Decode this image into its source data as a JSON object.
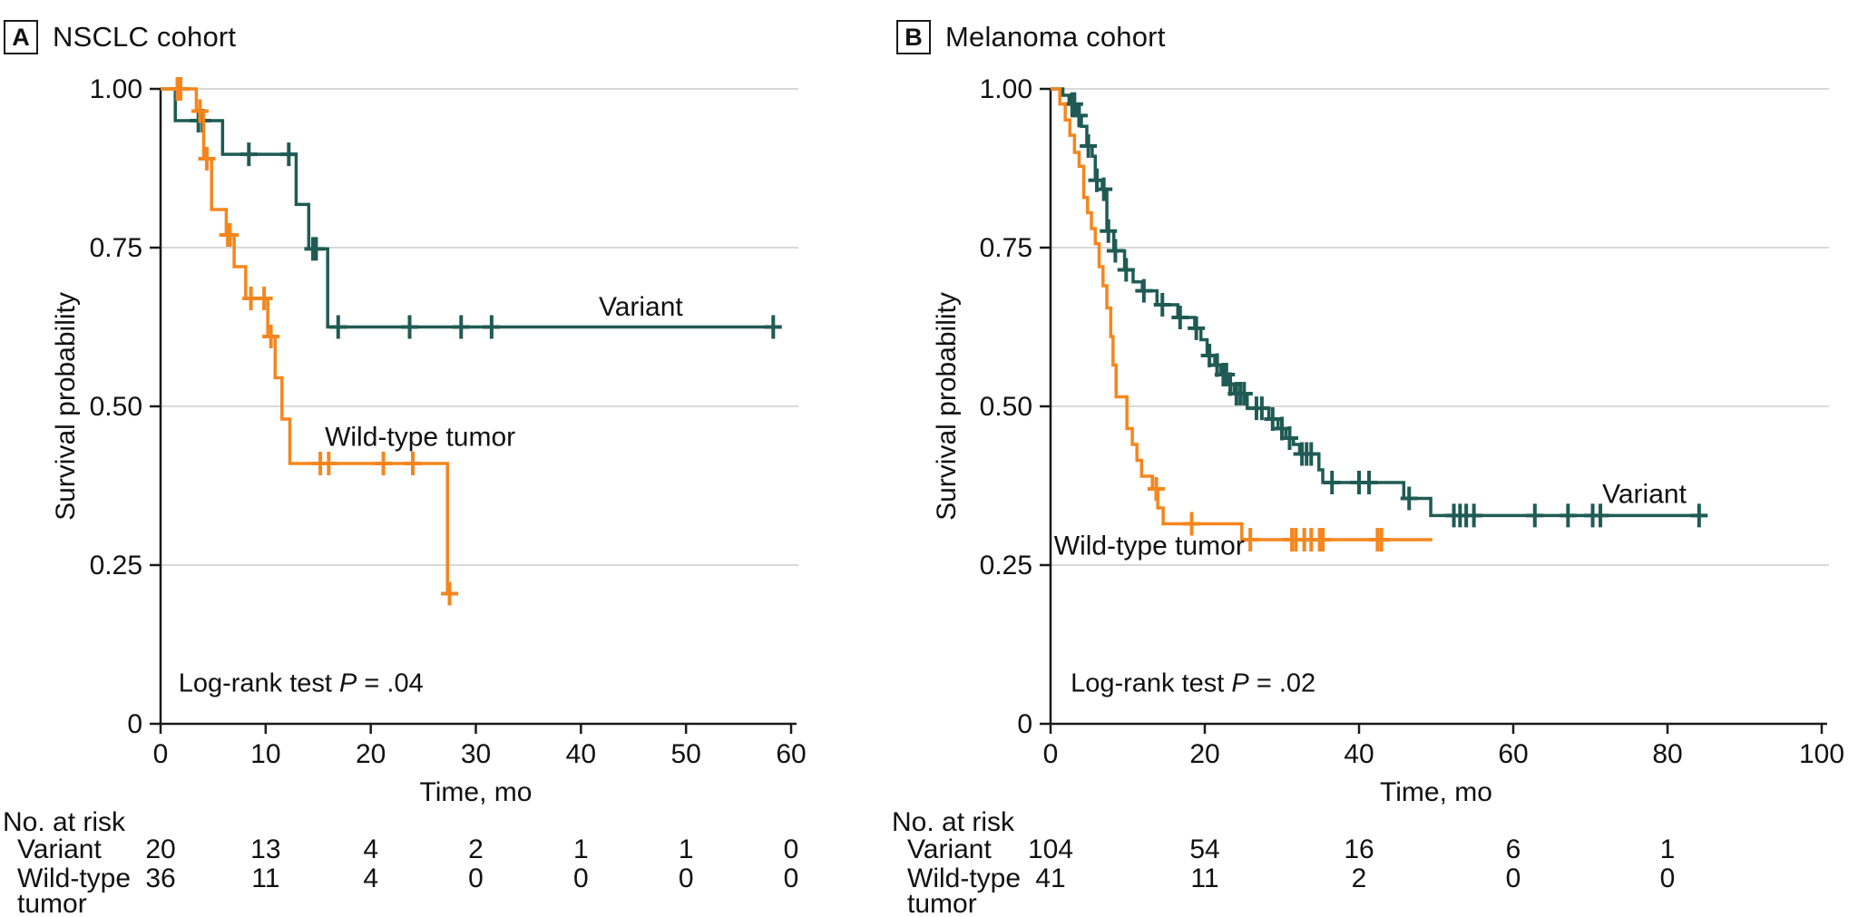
{
  "figure": {
    "kind": "kaplan-meier-survival-figure",
    "colors": {
      "variant": "#1F5B54",
      "wild_type": "#F5861D",
      "grid": "#D9D9D9",
      "axis": "#1A1A1A",
      "text": "#111111"
    }
  },
  "chart_data": [
    {
      "panel": "A",
      "title": "NSCLC cohort",
      "type": "line",
      "subtype": "kaplan-meier-step",
      "xlabel": "Time, mo",
      "ylabel": "Survival probability",
      "xlim": [
        0,
        60
      ],
      "ylim": [
        0,
        1
      ],
      "grid": true,
      "xticks": [
        0,
        10,
        20,
        30,
        40,
        50,
        60
      ],
      "yticks": [
        {
          "v": 1.0,
          "label": "1.00"
        },
        {
          "v": 0.75,
          "label": "0.75"
        },
        {
          "v": 0.5,
          "label": "0.50"
        },
        {
          "v": 0.25,
          "label": "0.25"
        },
        {
          "v": 0,
          "label": "0"
        }
      ],
      "annotation": {
        "prefix": "Log-rank test ",
        "italic": "P",
        "suffix": " = .04",
        "x": 1.7,
        "y": 0.065
      },
      "series": [
        {
          "name": "Variant",
          "color_key": "variant",
          "label": {
            "text": "Variant",
            "x": 45.7,
            "y": 0.657
          },
          "steps": [
            [
              0,
              1
            ],
            [
              1.4,
              0.95
            ],
            [
              5.9,
              0.897
            ],
            [
              12.9,
              0.818
            ],
            [
              14.1,
              0.748
            ],
            [
              15.9,
              0.625
            ]
          ],
          "end_x": 59.0,
          "censors": [
            [
              3.6,
              0.95
            ],
            [
              4.0,
              0.95
            ],
            [
              8.4,
              0.897
            ],
            [
              12.2,
              0.897
            ],
            [
              14.5,
              0.748
            ],
            [
              14.8,
              0.748
            ],
            [
              16.9,
              0.625
            ],
            [
              23.7,
              0.625
            ],
            [
              28.6,
              0.625
            ],
            [
              31.5,
              0.625
            ],
            [
              58.3,
              0.625
            ]
          ]
        },
        {
          "name": "Wild-type tumor",
          "color_key": "wild_type",
          "label": {
            "text": "Wild-type tumor",
            "x": 24.7,
            "y": 0.452
          },
          "steps": [
            [
              0,
              1
            ],
            [
              3.4,
              0.965
            ],
            [
              4.1,
              0.89
            ],
            [
              4.85,
              0.81
            ],
            [
              6.25,
              0.77
            ],
            [
              7.0,
              0.72
            ],
            [
              8.1,
              0.67
            ],
            [
              10.2,
              0.61
            ],
            [
              10.9,
              0.545
            ],
            [
              11.55,
              0.48
            ],
            [
              12.3,
              0.41
            ],
            [
              27.3,
              0.205
            ]
          ],
          "end_x": 27.8,
          "censors": [
            [
              1.6,
              1
            ],
            [
              1.9,
              1
            ],
            [
              3.75,
              0.965
            ],
            [
              4.4,
              0.89
            ],
            [
              6.4,
              0.77
            ],
            [
              6.6,
              0.77
            ],
            [
              8.6,
              0.67
            ],
            [
              9.85,
              0.67
            ],
            [
              10.5,
              0.61
            ],
            [
              15.2,
              0.41
            ],
            [
              16.0,
              0.41
            ],
            [
              21.2,
              0.41
            ],
            [
              24.0,
              0.41
            ],
            [
              27.5,
              0.205
            ]
          ]
        }
      ],
      "risk_table": {
        "title": "No. at risk",
        "times": [
          0,
          10,
          20,
          30,
          40,
          50,
          60
        ],
        "rows": [
          {
            "label_lines": [
              "Variant"
            ],
            "values": [
              "20",
              "13",
              "4",
              "2",
              "1",
              "1",
              "0"
            ]
          },
          {
            "label_lines": [
              "Wild-type",
              "tumor"
            ],
            "values": [
              "36",
              "11",
              "4",
              "0",
              "0",
              "0",
              "0"
            ]
          }
        ]
      }
    },
    {
      "panel": "B",
      "title": "Melanoma cohort",
      "type": "line",
      "subtype": "kaplan-meier-step",
      "xlabel": "Time, mo",
      "ylabel": "Survival probability",
      "xlim": [
        0,
        100
      ],
      "ylim": [
        0,
        1
      ],
      "grid": true,
      "xticks": [
        0,
        20,
        40,
        60,
        80,
        100
      ],
      "yticks": [
        {
          "v": 1.0,
          "label": "1.00"
        },
        {
          "v": 0.75,
          "label": "0.75"
        },
        {
          "v": 0.5,
          "label": "0.50"
        },
        {
          "v": 0.25,
          "label": "0.25"
        },
        {
          "v": 0,
          "label": "0"
        }
      ],
      "annotation": {
        "prefix": "Log-rank test ",
        "italic": "P",
        "suffix": " = .02",
        "x": 2.6,
        "y": 0.065
      },
      "series": [
        {
          "name": "Variant",
          "color_key": "variant",
          "label": {
            "text": "Variant",
            "x": 77.0,
            "y": 0.362
          },
          "steps": [
            [
              0,
              1
            ],
            [
              1.6,
              0.99
            ],
            [
              2.4,
              0.976
            ],
            [
              3.4,
              0.958
            ],
            [
              4.0,
              0.941
            ],
            [
              4.7,
              0.91
            ],
            [
              5.4,
              0.894
            ],
            [
              5.8,
              0.856
            ],
            [
              6.7,
              0.842
            ],
            [
              7.3,
              0.776
            ],
            [
              8.2,
              0.745
            ],
            [
              9.6,
              0.715
            ],
            [
              10.7,
              0.696
            ],
            [
              11.9,
              0.682
            ],
            [
              13.8,
              0.66
            ],
            [
              16.5,
              0.64
            ],
            [
              18.7,
              0.623
            ],
            [
              19.5,
              0.605
            ],
            [
              20.3,
              0.58
            ],
            [
              21.3,
              0.565
            ],
            [
              22.1,
              0.55
            ],
            [
              22.9,
              0.535
            ],
            [
              23.8,
              0.52
            ],
            [
              25.5,
              0.497
            ],
            [
              28.3,
              0.48
            ],
            [
              29.5,
              0.465
            ],
            [
              30.5,
              0.45
            ],
            [
              31.5,
              0.44
            ],
            [
              32.3,
              0.425
            ],
            [
              34.8,
              0.4
            ],
            [
              35.3,
              0.38
            ],
            [
              45.8,
              0.355
            ],
            [
              49.3,
              0.328
            ]
          ],
          "end_x": 84.9,
          "censors": [
            [
              2.8,
              0.976
            ],
            [
              3.1,
              0.976
            ],
            [
              3.7,
              0.958
            ],
            [
              4.9,
              0.91
            ],
            [
              6.0,
              0.856
            ],
            [
              6.9,
              0.842
            ],
            [
              7.5,
              0.776
            ],
            [
              8.4,
              0.745
            ],
            [
              9.8,
              0.715
            ],
            [
              12.1,
              0.682
            ],
            [
              14.5,
              0.66
            ],
            [
              16.8,
              0.64
            ],
            [
              18.9,
              0.623
            ],
            [
              20.6,
              0.58
            ],
            [
              21.6,
              0.565
            ],
            [
              22.4,
              0.55
            ],
            [
              22.8,
              0.55
            ],
            [
              23.3,
              0.535
            ],
            [
              24.1,
              0.52
            ],
            [
              24.6,
              0.52
            ],
            [
              25.1,
              0.52
            ],
            [
              26.7,
              0.497
            ],
            [
              27.4,
              0.497
            ],
            [
              28.8,
              0.48
            ],
            [
              30.0,
              0.465
            ],
            [
              31.0,
              0.45
            ],
            [
              32.6,
              0.425
            ],
            [
              33.2,
              0.425
            ],
            [
              33.8,
              0.425
            ],
            [
              36.5,
              0.38
            ],
            [
              40.0,
              0.38
            ],
            [
              41.3,
              0.38
            ],
            [
              46.5,
              0.355
            ],
            [
              52.3,
              0.328
            ],
            [
              53.1,
              0.328
            ],
            [
              53.9,
              0.328
            ],
            [
              54.9,
              0.328
            ],
            [
              62.8,
              0.328
            ],
            [
              67.1,
              0.328
            ],
            [
              70.3,
              0.328
            ],
            [
              71.3,
              0.328
            ],
            [
              84.1,
              0.328
            ]
          ]
        },
        {
          "name": "Wild-type tumor",
          "color_key": "wild_type",
          "label": {
            "text": "Wild-type tumor",
            "x": 12.8,
            "y": 0.281
          },
          "steps": [
            [
              0,
              1
            ],
            [
              1.2,
              0.976
            ],
            [
              1.9,
              0.951
            ],
            [
              2.5,
              0.927
            ],
            [
              3.1,
              0.9
            ],
            [
              3.7,
              0.878
            ],
            [
              4.3,
              0.829
            ],
            [
              4.8,
              0.805
            ],
            [
              5.3,
              0.78
            ],
            [
              5.8,
              0.756
            ],
            [
              6.3,
              0.72
            ],
            [
              6.8,
              0.69
            ],
            [
              7.3,
              0.655
            ],
            [
              7.8,
              0.61
            ],
            [
              8.1,
              0.565
            ],
            [
              8.5,
              0.515
            ],
            [
              9.9,
              0.465
            ],
            [
              10.6,
              0.44
            ],
            [
              11.2,
              0.415
            ],
            [
              11.8,
              0.39
            ],
            [
              13.2,
              0.37
            ],
            [
              13.9,
              0.34
            ],
            [
              14.6,
              0.315
            ],
            [
              24.8,
              0.29
            ]
          ],
          "end_x": 49.5,
          "censors": [
            [
              13.7,
              0.37
            ],
            [
              18.3,
              0.315
            ],
            [
              25.9,
              0.29
            ],
            [
              31.3,
              0.29
            ],
            [
              31.8,
              0.29
            ],
            [
              32.9,
              0.29
            ],
            [
              33.8,
              0.29
            ],
            [
              34.9,
              0.29
            ],
            [
              35.3,
              0.29
            ],
            [
              42.4,
              0.29
            ],
            [
              42.9,
              0.29
            ]
          ]
        }
      ],
      "risk_table": {
        "title": "No. at risk",
        "times": [
          0,
          20,
          40,
          60,
          80
        ],
        "rows": [
          {
            "label_lines": [
              "Variant"
            ],
            "values": [
              "104",
              "54",
              "16",
              "6",
              "1"
            ]
          },
          {
            "label_lines": [
              "Wild-type",
              "tumor"
            ],
            "values": [
              "41",
              "11",
              "2",
              "0",
              "0"
            ]
          }
        ]
      }
    }
  ]
}
